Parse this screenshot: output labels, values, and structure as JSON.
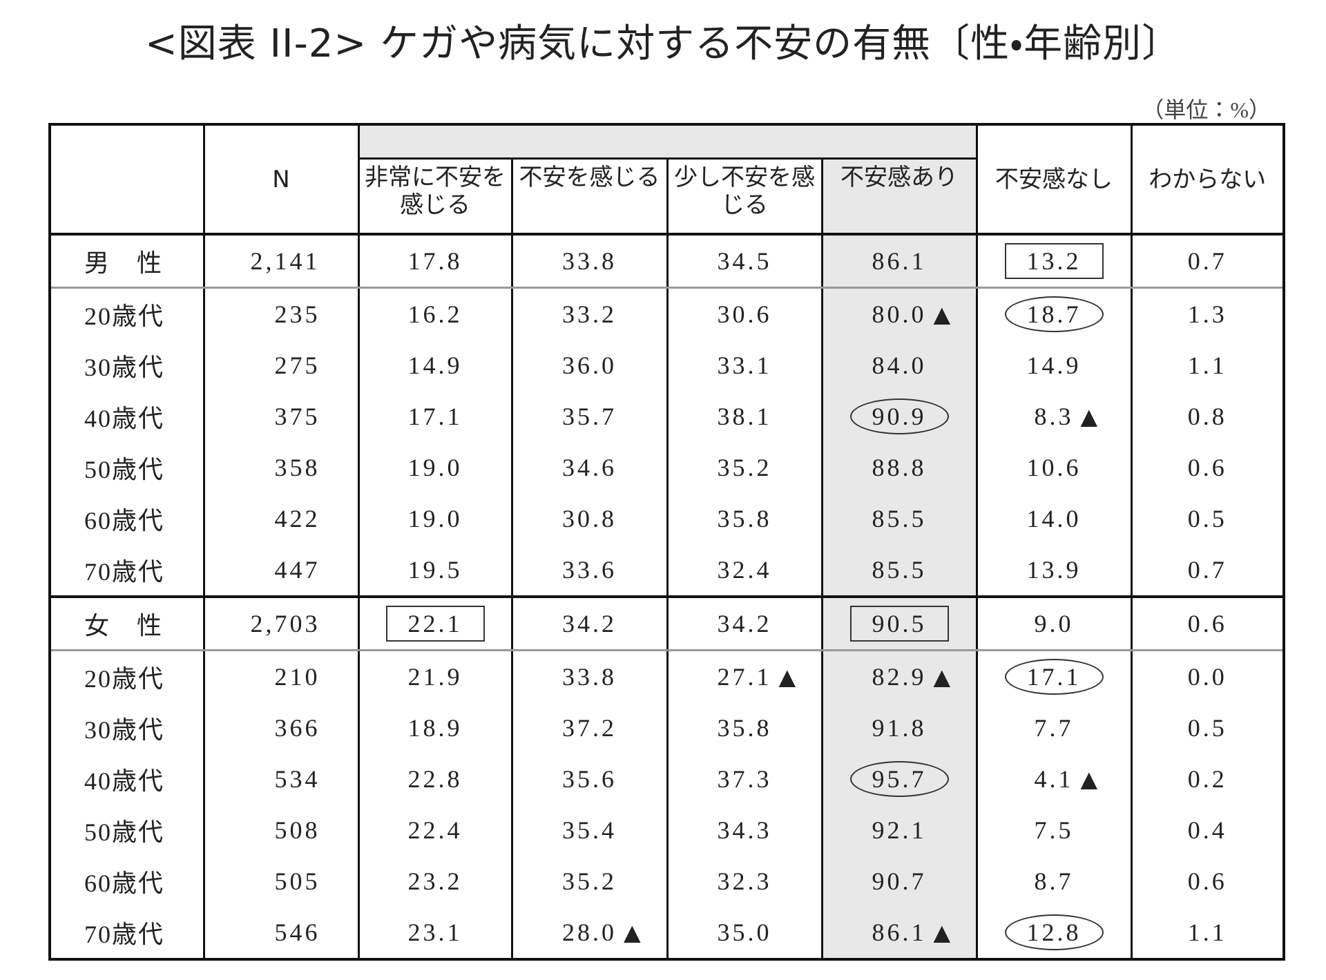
{
  "title": "<図表 II-2> ケガや病気に対する不安の有無〔性・年齢別〕",
  "unit": "（単位：%）",
  "table": {
    "header": [
      "N",
      "非常に不安を感じる",
      "不安を感じる",
      "少し不安を感じる",
      "不安感あり",
      "不安感なし",
      "わからない"
    ],
    "rows": [
      [
        "男　性",
        "2,141",
        "17.8",
        "33.8",
        "34.5",
        "86.1",
        "13.2",
        "0.7"
      ],
      [
        "20歳代",
        "235",
        "16.2",
        "33.2",
        "30.6",
        {
          "value": "80.0",
          "flag": "▲"
        },
        "18.7",
        "1.3"
      ],
      [
        "30歳代",
        "275",
        "14.9",
        "36.0",
        "33.1",
        "84.0",
        "14.9",
        "1.1"
      ],
      [
        "40歳代",
        "375",
        "17.1",
        "35.7",
        "38.1",
        "90.9",
        {
          "value": "8.3",
          "flag": "▲"
        },
        "0.8"
      ],
      [
        "50歳代",
        "358",
        "19.0",
        "34.6",
        "35.2",
        "88.8",
        "10.6",
        "0.6"
      ],
      [
        "60歳代",
        "422",
        "19.0",
        "30.8",
        "35.8",
        "85.5",
        "14.0",
        "0.5"
      ],
      [
        "70歳代",
        "447",
        "19.5",
        "33.6",
        "32.4",
        "85.5",
        "13.9",
        "0.7"
      ],
      [
        "女　性",
        "2,703",
        "22.1",
        "34.2",
        "34.2",
        "90.5",
        "9.0",
        "0.6"
      ],
      [
        "20歳代",
        "210",
        "21.9",
        "33.8",
        {
          "value": "27.1",
          "flag": "▲"
        },
        {
          "value": "82.9",
          "flag": "▲"
        },
        "17.1",
        "0.0"
      ],
      [
        "30歳代",
        "366",
        "18.9",
        "37.2",
        "35.8",
        "91.8",
        "7.7",
        "0.5"
      ],
      [
        "40歳代",
        "534",
        "22.8",
        "35.6",
        "37.3",
        "95.7",
        {
          "value": "4.1",
          "flag": "▲"
        },
        "0.2"
      ],
      [
        "50歳代",
        "508",
        "22.4",
        "35.4",
        "34.3",
        "92.1",
        "7.5",
        "0.4"
      ],
      [
        "60歳代",
        "505",
        "23.2",
        "35.2",
        "32.3",
        "90.7",
        "8.7",
        "0.6"
      ],
      [
        "70歳代",
        "546",
        "23.1",
        {
          "value": "28.0",
          "flag": "▲"
        },
        "35.0",
        {
          "value": "86.1",
          "flag": "▲"
        },
        "12.8",
        "1.1"
      ]
    ]
  }
}
